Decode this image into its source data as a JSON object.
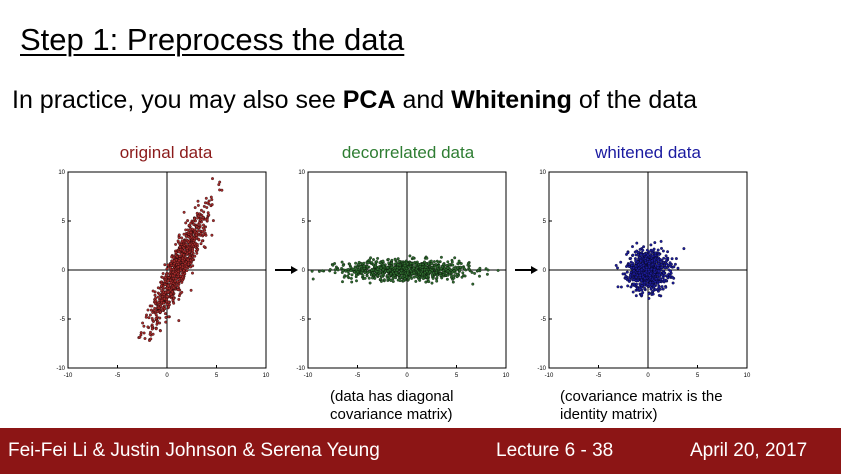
{
  "slide": {
    "title": "Step 1: Preprocess the data",
    "subtitle": {
      "part1": "In practice, you may also see ",
      "bold1": "PCA",
      "part2": " and ",
      "bold2": "Whitening",
      "part3": " of the data"
    }
  },
  "chart_data": [
    {
      "type": "scatter",
      "title": "original data",
      "title_color": "#8b1a1a",
      "point_color": "#a52a2a",
      "xlim": [
        -10,
        10
      ],
      "ylim": [
        -10,
        10
      ],
      "xticks": [
        "-10",
        "-5",
        "0",
        "5",
        "10"
      ],
      "yticks": [
        "10",
        "5",
        "0",
        "-5",
        "-10"
      ],
      "distribution": {
        "major_angle_deg": 65,
        "major_std": 3.2,
        "minor_std": 0.55,
        "center": [
          1.2,
          0.3
        ],
        "count": 900
      }
    },
    {
      "type": "scatter",
      "title": "decorrelated data",
      "title_color": "#2e7d32",
      "point_color": "#2e6b2e",
      "xlim": [
        -10,
        10
      ],
      "ylim": [
        -10,
        10
      ],
      "xticks": [
        "-10",
        "-5",
        "0",
        "5",
        "10"
      ],
      "yticks": [
        "10",
        "5",
        "0",
        "-5",
        "-10"
      ],
      "distribution": {
        "major_angle_deg": 0,
        "major_std": 3.2,
        "minor_std": 0.5,
        "center": [
          0,
          0
        ],
        "count": 900
      }
    },
    {
      "type": "scatter",
      "title": "whitened data",
      "title_color": "#1a1aa0",
      "point_color": "#1c1c9c",
      "xlim": [
        -10,
        10
      ],
      "ylim": [
        -10,
        10
      ],
      "xticks": [
        "-10",
        "-5",
        "0",
        "5",
        "10"
      ],
      "yticks": [
        "10",
        "5",
        "0",
        "-5",
        "-10"
      ],
      "distribution": {
        "major_angle_deg": 0,
        "major_std": 1.0,
        "minor_std": 1.0,
        "center": [
          0,
          0
        ],
        "count": 900
      }
    }
  ],
  "captions": {
    "decorrelated_line1": "(data has diagonal",
    "decorrelated_line2": "covariance matrix)",
    "whitened_line1": "(covariance matrix is the",
    "whitened_line2": "identity matrix)"
  },
  "footer": {
    "authors": "Fei-Fei Li & Justin Johnson & Serena Yeung",
    "lecture": "Lecture 6 - 38",
    "date": "April 20, 2017",
    "background": "#8c1515"
  }
}
